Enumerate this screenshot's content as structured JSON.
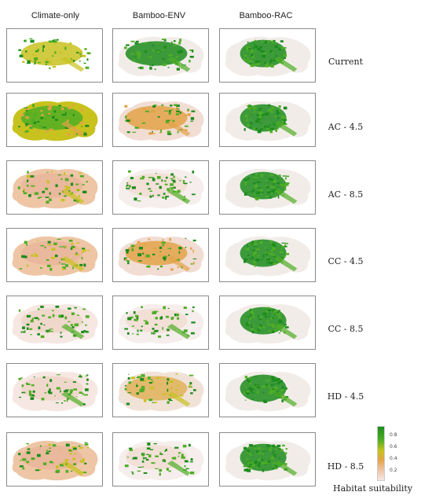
{
  "columns": [
    "Climate-only",
    "Bamboo-ENV",
    "Bamboo-RAC"
  ],
  "rows": [
    "Current",
    "AC - 4.5",
    "AC - 8.5",
    "CC - 4.5",
    "CC - 8.5",
    "HD - 4.5",
    "HD - 8.5"
  ],
  "legend": {
    "title": "Habitat suitability",
    "ticks": [
      "0.8",
      "0.6",
      "0.4",
      "0.2"
    ],
    "colors": {
      "high": "#1c8c1c",
      "mid_high": "#4fae24",
      "mid": "#c8c21e",
      "mid_low": "#e3a349",
      "low": "#eec6a6",
      "very_low": "#f6e7e2"
    }
  },
  "panels": [
    [
      "green-yellow-sparse",
      "green-core",
      "green-core"
    ],
    [
      "yellow-dominant",
      "pink-with-green",
      "green-core"
    ],
    [
      "pink-dominant",
      "faint-with-green",
      "green-core"
    ],
    [
      "pink-dominant",
      "pink-with-green",
      "green-core"
    ],
    [
      "pale-pink",
      "faint-with-green",
      "green-core"
    ],
    [
      "pale-pink",
      "orange-with-green",
      "green-core"
    ],
    [
      "pink-dominant",
      "faint-with-green",
      "green-core"
    ]
  ]
}
